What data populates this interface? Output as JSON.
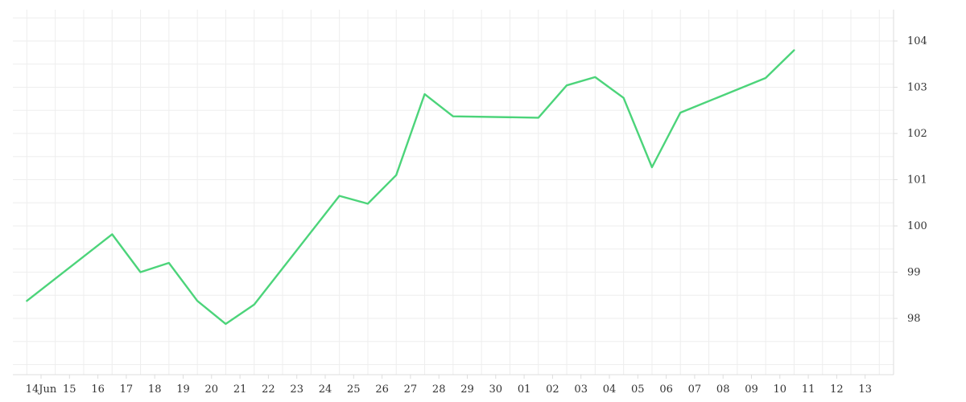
{
  "chart_data": {
    "type": "line",
    "title": "",
    "xlabel": "",
    "ylabel": "",
    "x_tick_labels": [
      "14Jun",
      "15",
      "16",
      "17",
      "18",
      "19",
      "20",
      "21",
      "22",
      "23",
      "24",
      "25",
      "26",
      "27",
      "28",
      "29",
      "30",
      "01",
      "02",
      "03",
      "04",
      "05",
      "06",
      "07",
      "08",
      "09",
      "10",
      "11",
      "12",
      "13"
    ],
    "y_tick_labels": [
      "98",
      "99",
      "100",
      "101",
      "102",
      "103",
      "104"
    ],
    "ylim": [
      97,
      104.7
    ],
    "y_axis_position": "right",
    "grid": true,
    "legend": "none",
    "series": [
      {
        "color": "#4cd47a",
        "x": [
          0,
          3,
          4,
          5,
          6,
          7,
          8,
          11,
          12,
          13,
          14,
          15,
          18,
          19,
          20,
          21,
          22,
          23,
          26,
          27,
          28,
          29,
          30,
          31
        ],
        "values": [
          98.38,
          99.82,
          99.0,
          99.2,
          98.38,
          97.88,
          98.3,
          100.65,
          100.48,
          101.1,
          102.85,
          102.37,
          102.34,
          103.04,
          103.22,
          102.77,
          101.27,
          102.45,
          103.2,
          103.8,
          null,
          null,
          null,
          null
        ]
      }
    ]
  }
}
